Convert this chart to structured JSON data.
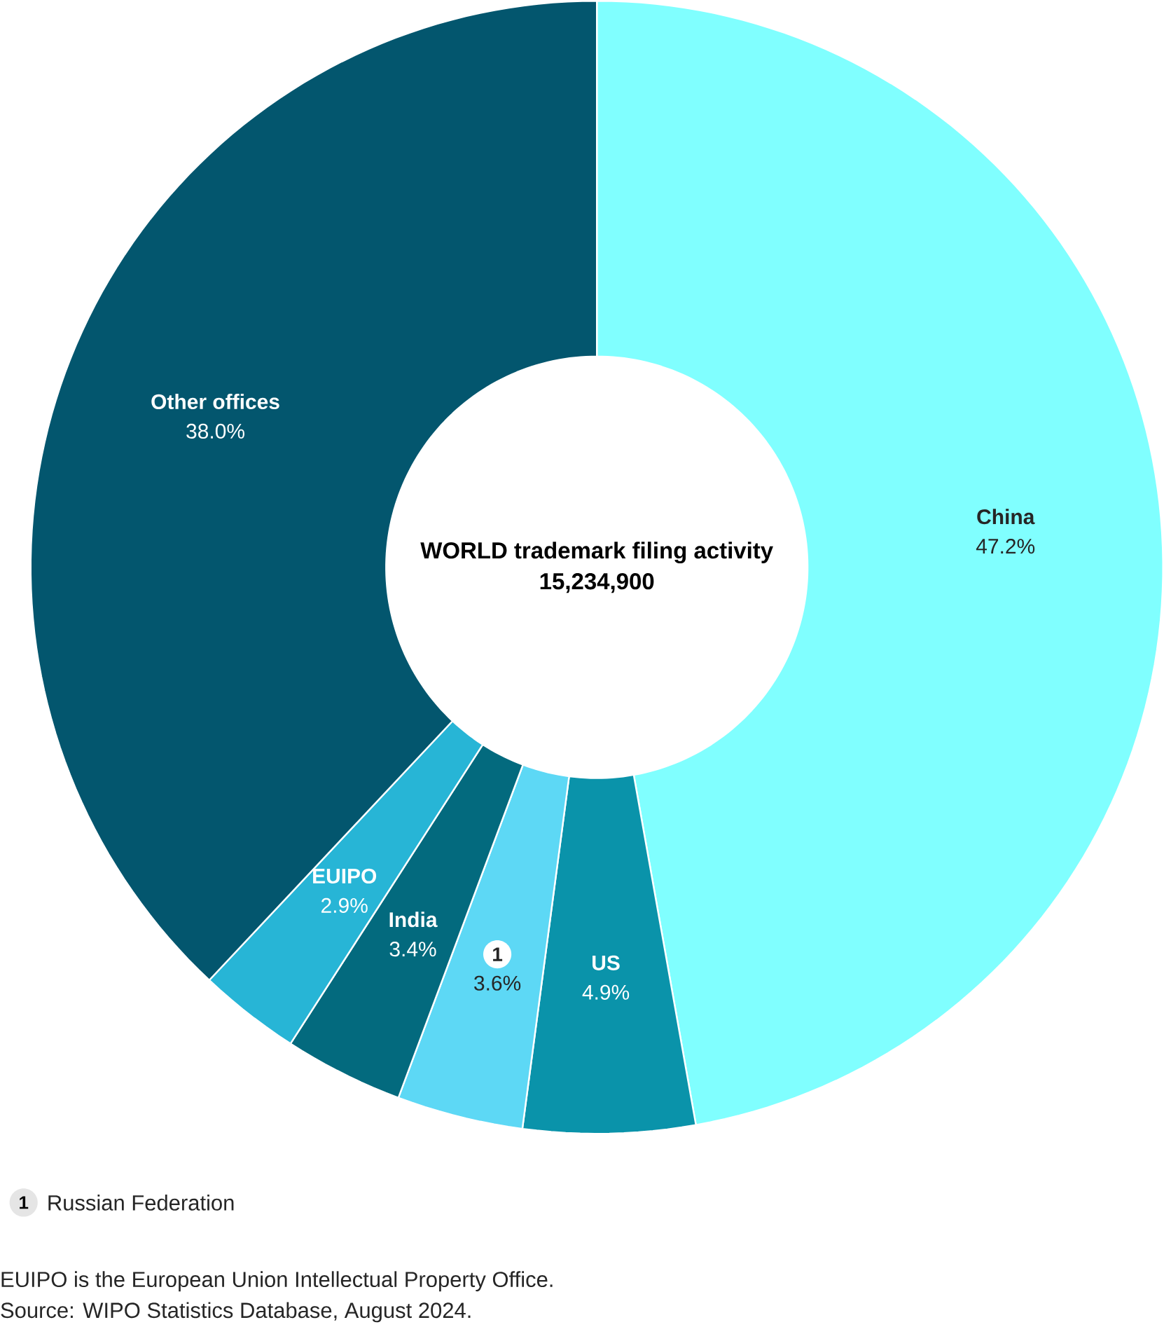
{
  "chart_data": {
    "type": "donut",
    "title": "WORLD trademark filing activity",
    "subtitle": "15,234,900",
    "categories": [
      "China",
      "US",
      "1",
      "India",
      "EUIPO",
      "Other offices"
    ],
    "values": [
      47.2,
      4.9,
      3.6,
      3.4,
      2.9,
      38.0
    ],
    "colors": [
      "#80ffff",
      "#0a93aa",
      "#5dd8f5",
      "#036a7e",
      "#27b5d6",
      "#03566e"
    ],
    "value_labels": [
      "47.2%",
      "4.9%",
      "3.6%",
      "3.4%",
      "2.9%",
      "38.0%"
    ],
    "annotations": [
      "Russian Federation",
      "EUIPO is the European Union Intellectual Property Office.",
      "Source: WIPO Statistics Database, August 2024."
    ]
  }
}
